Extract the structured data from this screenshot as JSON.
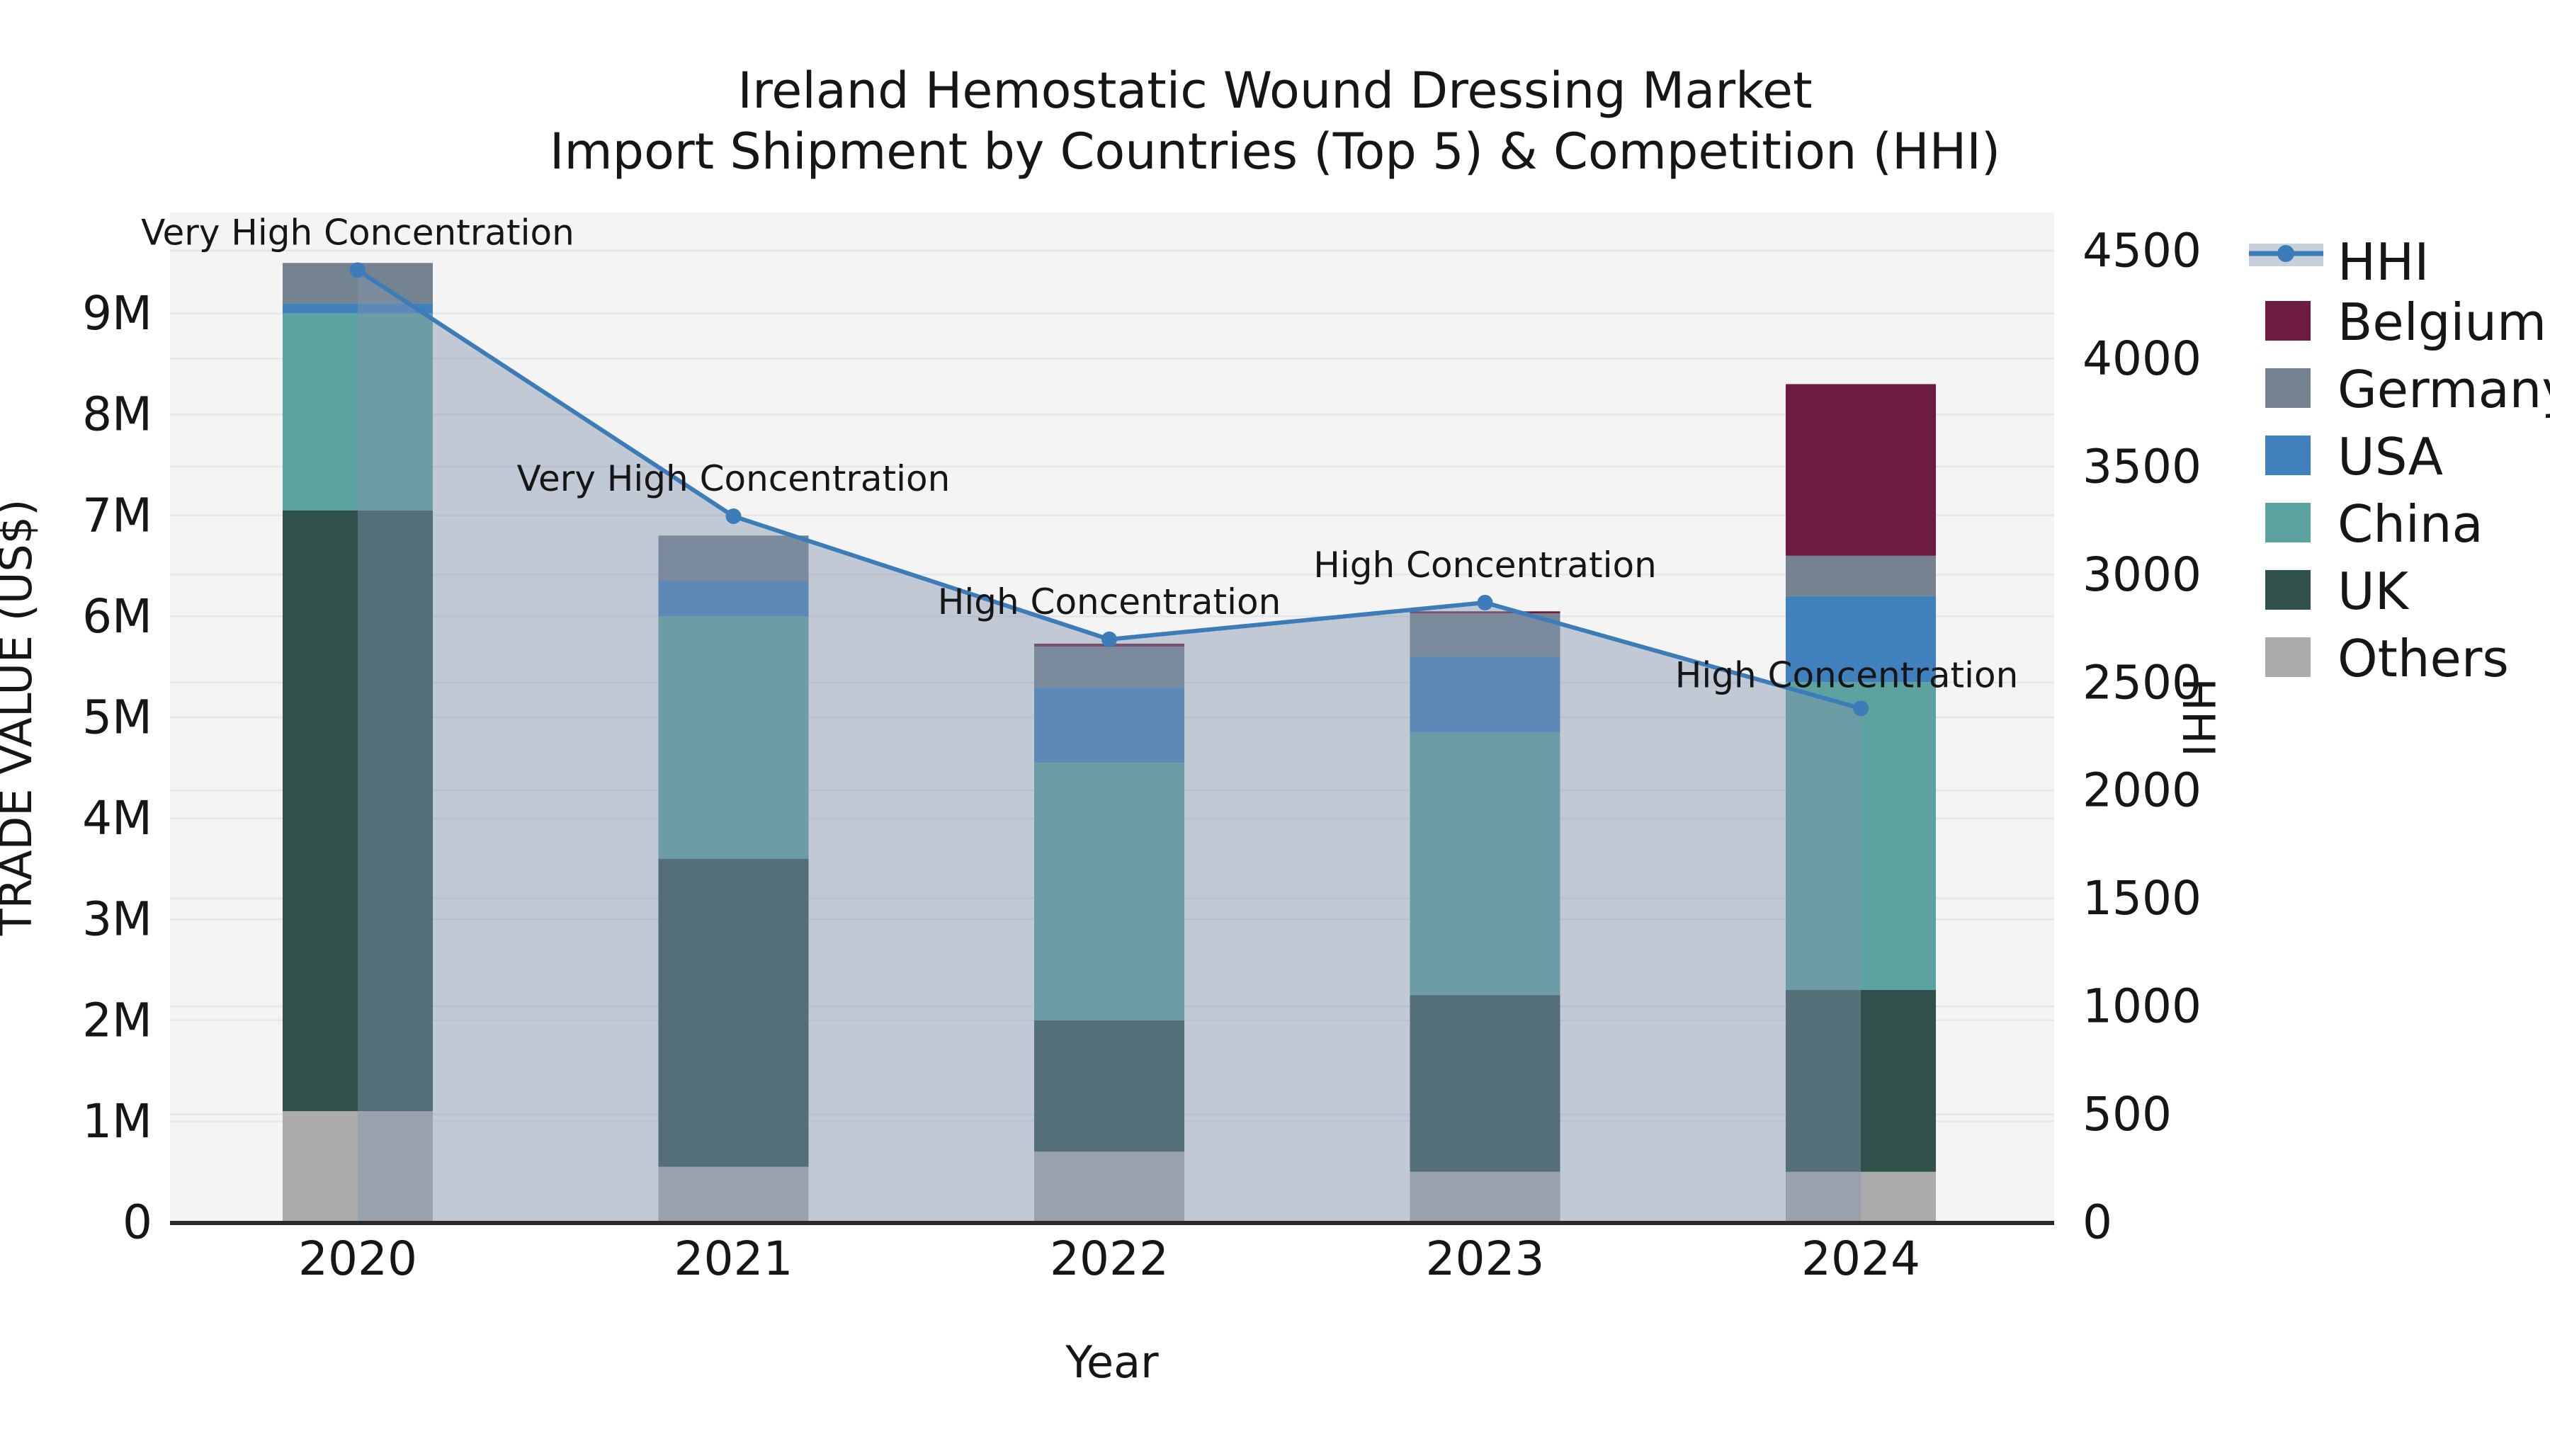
{
  "title": {
    "line1": "Ireland Hemostatic Wound Dressing Market",
    "line2": "Import Shipment by Countries (Top 5) & Competition (HHI)"
  },
  "axes": {
    "x": {
      "label": "Year",
      "tick_labels": [
        "2020",
        "2021",
        "2022",
        "2023",
        "2024"
      ]
    },
    "y_left": {
      "label": "TRADE VALUE (US$)",
      "tick_labels": [
        "0",
        "1M",
        "2M",
        "3M",
        "4M",
        "5M",
        "6M",
        "7M",
        "8M",
        "9M"
      ],
      "max_units_m": 10
    },
    "y_right": {
      "label": "HHI",
      "tick_labels": [
        "0",
        "500",
        "1000",
        "1500",
        "2000",
        "2500",
        "3000",
        "3500",
        "4000",
        "4500"
      ],
      "max_value": 4500
    }
  },
  "legend": {
    "entries": [
      {
        "label": "HHI",
        "kind": "line",
        "color": "#3C7DB9"
      },
      {
        "label": "Belgium",
        "kind": "patch",
        "color": "#6E1B41"
      },
      {
        "label": "Germany",
        "kind": "patch",
        "color": "#75828F"
      },
      {
        "label": "USA",
        "kind": "patch",
        "color": "#4080BD"
      },
      {
        "label": "China",
        "kind": "patch",
        "color": "#5CA2A1"
      },
      {
        "label": "UK",
        "kind": "patch",
        "color": "#2F504B"
      },
      {
        "label": "Others",
        "kind": "patch",
        "color": "#ABABAB"
      }
    ]
  },
  "colors": {
    "plot_background": "#F4F4F5",
    "gridline": "#E4E6E9",
    "axis_spine": "#2B2B2B",
    "hhi_line": "#3C7DB9",
    "hhi_area_fill": "#8395AC",
    "hhi_area_opacity": 0.45,
    "legend_band": "#C7CFDA",
    "text": "#161616"
  },
  "chart_data": {
    "type": "bar+line",
    "title": "Ireland Hemostatic Wound Dressing Market — Import Shipment by Countries (Top 5) & Competition (HHI)",
    "categories": [
      "2020",
      "2021",
      "2022",
      "2023",
      "2024"
    ],
    "xlabel": "Year",
    "ylabel_left": "TRADE VALUE (US$)",
    "ylabel_right": "HHI",
    "ylim_left_musd": [
      0,
      10
    ],
    "ylim_right_hhi": [
      0,
      4677
    ],
    "grid": true,
    "legend_position": "outside-top-right",
    "bar_stack_order_bottom_to_top": [
      "Others",
      "UK",
      "China",
      "USA",
      "Germany",
      "Belgium"
    ],
    "series": [
      {
        "name": "Others",
        "color": "#ABABAB",
        "values_musd": [
          1.1,
          0.55,
          0.7,
          0.5,
          0.5
        ]
      },
      {
        "name": "UK",
        "color": "#2F504B",
        "values_musd": [
          5.95,
          3.05,
          1.3,
          1.75,
          1.8
        ]
      },
      {
        "name": "China",
        "color": "#5CA2A1",
        "values_musd": [
          1.95,
          2.4,
          2.55,
          2.6,
          3.05
        ]
      },
      {
        "name": "USA",
        "color": "#4080BD",
        "values_musd": [
          0.1,
          0.35,
          0.75,
          0.75,
          0.85
        ]
      },
      {
        "name": "Germany",
        "color": "#75828F",
        "values_musd": [
          0.4,
          0.45,
          0.4,
          0.43,
          0.4
        ]
      },
      {
        "name": "Belgium",
        "color": "#6E1B41",
        "values_musd": [
          0.0,
          0.0,
          0.03,
          0.02,
          1.7
        ]
      }
    ],
    "bar_totals_musd": [
      9.5,
      6.8,
      5.73,
      6.05,
      8.3
    ],
    "line_series": {
      "name": "HHI",
      "color": "#3C7DB9",
      "values": [
        4410,
        3270,
        2700,
        2870,
        2380
      ],
      "area_fill_to_zero": true
    },
    "annotations": [
      {
        "category": "2020",
        "text": "Very High Concentration"
      },
      {
        "category": "2021",
        "text": "Very High Concentration"
      },
      {
        "category": "2022",
        "text": "High Concentration"
      },
      {
        "category": "2023",
        "text": "High Concentration"
      },
      {
        "category": "2024",
        "text": "High Concentration"
      }
    ]
  }
}
